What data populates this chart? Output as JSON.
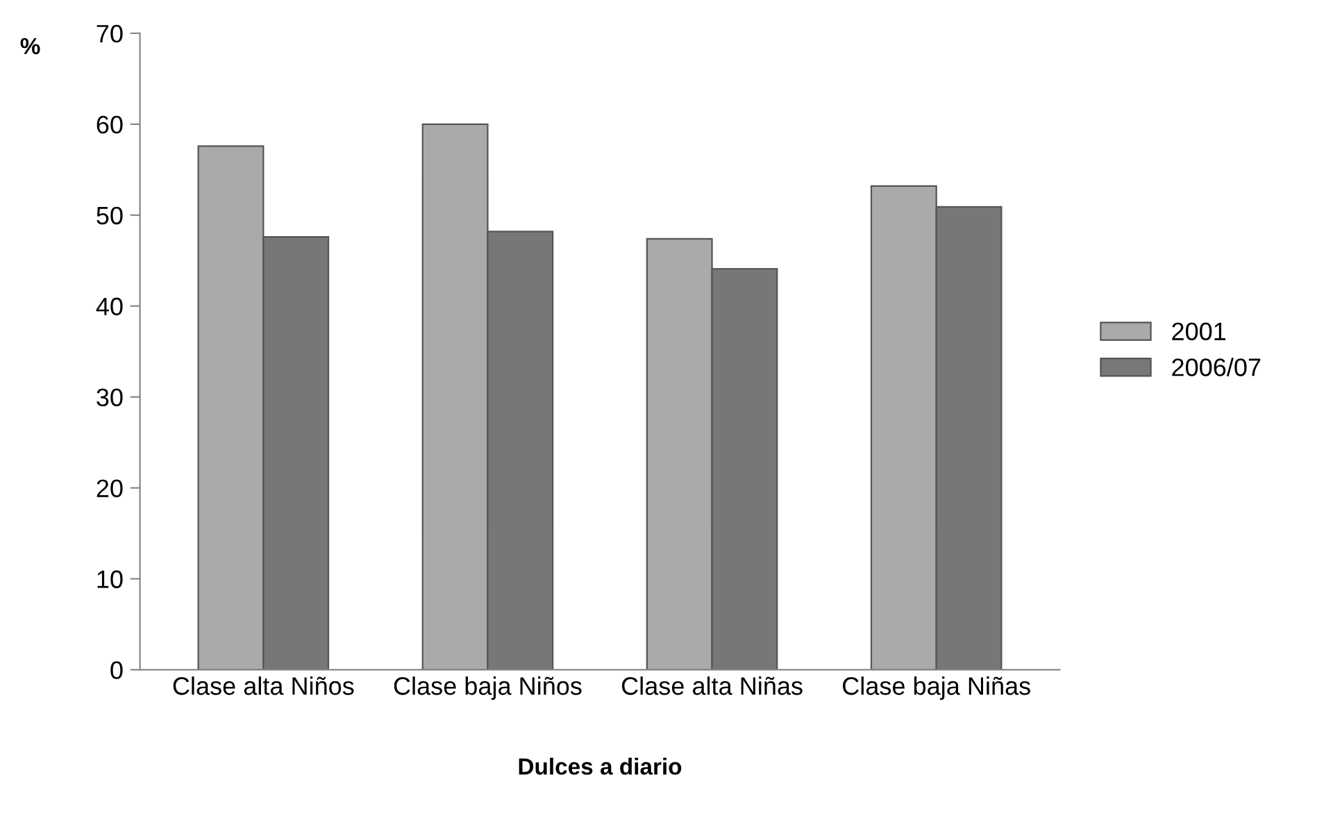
{
  "chart_data": {
    "type": "bar",
    "xlabel": "Dulces a diario",
    "ylabel": "%",
    "categories": [
      "Clase alta Niños",
      "Clase baja Niños",
      "Clase alta Niñas",
      "Clase baja Niñas"
    ],
    "series": [
      {
        "name": "2001",
        "color": "#aaaaaa",
        "values": [
          57.6,
          60.0,
          47.4,
          53.2
        ]
      },
      {
        "name": "2006/07",
        "color": "#777777",
        "values": [
          47.6,
          48.2,
          44.1,
          50.9
        ]
      }
    ],
    "ylim": [
      0,
      70
    ],
    "yticks": [
      0,
      10,
      20,
      30,
      40,
      50,
      60,
      70
    ],
    "grid": false,
    "legend": "right"
  }
}
